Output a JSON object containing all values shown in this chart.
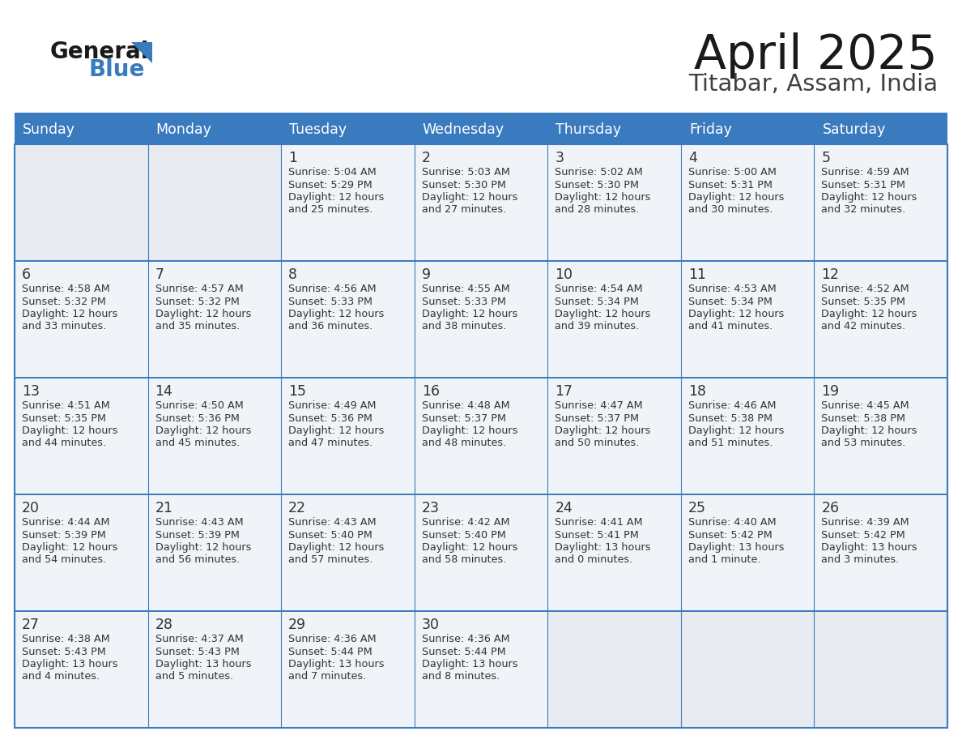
{
  "title": "April 2025",
  "subtitle": "Titabar, Assam, India",
  "header_bg": "#3a7abf",
  "header_text_color": "#ffffff",
  "cell_bg": "#f0f4f8",
  "empty_cell_bg": "#e8edf2",
  "text_color": "#333333",
  "border_color": "#3a7abf",
  "days_of_week": [
    "Sunday",
    "Monday",
    "Tuesday",
    "Wednesday",
    "Thursday",
    "Friday",
    "Saturday"
  ],
  "calendar_data": [
    [
      {
        "day": "",
        "sunrise": "",
        "sunset": "",
        "daylight": ""
      },
      {
        "day": "",
        "sunrise": "",
        "sunset": "",
        "daylight": ""
      },
      {
        "day": "1",
        "sunrise": "Sunrise: 5:04 AM",
        "sunset": "Sunset: 5:29 PM",
        "daylight": "Daylight: 12 hours\nand 25 minutes."
      },
      {
        "day": "2",
        "sunrise": "Sunrise: 5:03 AM",
        "sunset": "Sunset: 5:30 PM",
        "daylight": "Daylight: 12 hours\nand 27 minutes."
      },
      {
        "day": "3",
        "sunrise": "Sunrise: 5:02 AM",
        "sunset": "Sunset: 5:30 PM",
        "daylight": "Daylight: 12 hours\nand 28 minutes."
      },
      {
        "day": "4",
        "sunrise": "Sunrise: 5:00 AM",
        "sunset": "Sunset: 5:31 PM",
        "daylight": "Daylight: 12 hours\nand 30 minutes."
      },
      {
        "day": "5",
        "sunrise": "Sunrise: 4:59 AM",
        "sunset": "Sunset: 5:31 PM",
        "daylight": "Daylight: 12 hours\nand 32 minutes."
      }
    ],
    [
      {
        "day": "6",
        "sunrise": "Sunrise: 4:58 AM",
        "sunset": "Sunset: 5:32 PM",
        "daylight": "Daylight: 12 hours\nand 33 minutes."
      },
      {
        "day": "7",
        "sunrise": "Sunrise: 4:57 AM",
        "sunset": "Sunset: 5:32 PM",
        "daylight": "Daylight: 12 hours\nand 35 minutes."
      },
      {
        "day": "8",
        "sunrise": "Sunrise: 4:56 AM",
        "sunset": "Sunset: 5:33 PM",
        "daylight": "Daylight: 12 hours\nand 36 minutes."
      },
      {
        "day": "9",
        "sunrise": "Sunrise: 4:55 AM",
        "sunset": "Sunset: 5:33 PM",
        "daylight": "Daylight: 12 hours\nand 38 minutes."
      },
      {
        "day": "10",
        "sunrise": "Sunrise: 4:54 AM",
        "sunset": "Sunset: 5:34 PM",
        "daylight": "Daylight: 12 hours\nand 39 minutes."
      },
      {
        "day": "11",
        "sunrise": "Sunrise: 4:53 AM",
        "sunset": "Sunset: 5:34 PM",
        "daylight": "Daylight: 12 hours\nand 41 minutes."
      },
      {
        "day": "12",
        "sunrise": "Sunrise: 4:52 AM",
        "sunset": "Sunset: 5:35 PM",
        "daylight": "Daylight: 12 hours\nand 42 minutes."
      }
    ],
    [
      {
        "day": "13",
        "sunrise": "Sunrise: 4:51 AM",
        "sunset": "Sunset: 5:35 PM",
        "daylight": "Daylight: 12 hours\nand 44 minutes."
      },
      {
        "day": "14",
        "sunrise": "Sunrise: 4:50 AM",
        "sunset": "Sunset: 5:36 PM",
        "daylight": "Daylight: 12 hours\nand 45 minutes."
      },
      {
        "day": "15",
        "sunrise": "Sunrise: 4:49 AM",
        "sunset": "Sunset: 5:36 PM",
        "daylight": "Daylight: 12 hours\nand 47 minutes."
      },
      {
        "day": "16",
        "sunrise": "Sunrise: 4:48 AM",
        "sunset": "Sunset: 5:37 PM",
        "daylight": "Daylight: 12 hours\nand 48 minutes."
      },
      {
        "day": "17",
        "sunrise": "Sunrise: 4:47 AM",
        "sunset": "Sunset: 5:37 PM",
        "daylight": "Daylight: 12 hours\nand 50 minutes."
      },
      {
        "day": "18",
        "sunrise": "Sunrise: 4:46 AM",
        "sunset": "Sunset: 5:38 PM",
        "daylight": "Daylight: 12 hours\nand 51 minutes."
      },
      {
        "day": "19",
        "sunrise": "Sunrise: 4:45 AM",
        "sunset": "Sunset: 5:38 PM",
        "daylight": "Daylight: 12 hours\nand 53 minutes."
      }
    ],
    [
      {
        "day": "20",
        "sunrise": "Sunrise: 4:44 AM",
        "sunset": "Sunset: 5:39 PM",
        "daylight": "Daylight: 12 hours\nand 54 minutes."
      },
      {
        "day": "21",
        "sunrise": "Sunrise: 4:43 AM",
        "sunset": "Sunset: 5:39 PM",
        "daylight": "Daylight: 12 hours\nand 56 minutes."
      },
      {
        "day": "22",
        "sunrise": "Sunrise: 4:43 AM",
        "sunset": "Sunset: 5:40 PM",
        "daylight": "Daylight: 12 hours\nand 57 minutes."
      },
      {
        "day": "23",
        "sunrise": "Sunrise: 4:42 AM",
        "sunset": "Sunset: 5:40 PM",
        "daylight": "Daylight: 12 hours\nand 58 minutes."
      },
      {
        "day": "24",
        "sunrise": "Sunrise: 4:41 AM",
        "sunset": "Sunset: 5:41 PM",
        "daylight": "Daylight: 13 hours\nand 0 minutes."
      },
      {
        "day": "25",
        "sunrise": "Sunrise: 4:40 AM",
        "sunset": "Sunset: 5:42 PM",
        "daylight": "Daylight: 13 hours\nand 1 minute."
      },
      {
        "day": "26",
        "sunrise": "Sunrise: 4:39 AM",
        "sunset": "Sunset: 5:42 PM",
        "daylight": "Daylight: 13 hours\nand 3 minutes."
      }
    ],
    [
      {
        "day": "27",
        "sunrise": "Sunrise: 4:38 AM",
        "sunset": "Sunset: 5:43 PM",
        "daylight": "Daylight: 13 hours\nand 4 minutes."
      },
      {
        "day": "28",
        "sunrise": "Sunrise: 4:37 AM",
        "sunset": "Sunset: 5:43 PM",
        "daylight": "Daylight: 13 hours\nand 5 minutes."
      },
      {
        "day": "29",
        "sunrise": "Sunrise: 4:36 AM",
        "sunset": "Sunset: 5:44 PM",
        "daylight": "Daylight: 13 hours\nand 7 minutes."
      },
      {
        "day": "30",
        "sunrise": "Sunrise: 4:36 AM",
        "sunset": "Sunset: 5:44 PM",
        "daylight": "Daylight: 13 hours\nand 8 minutes."
      },
      {
        "day": "",
        "sunrise": "",
        "sunset": "",
        "daylight": ""
      },
      {
        "day": "",
        "sunrise": "",
        "sunset": "",
        "daylight": ""
      },
      {
        "day": "",
        "sunrise": "",
        "sunset": "",
        "daylight": ""
      }
    ]
  ]
}
